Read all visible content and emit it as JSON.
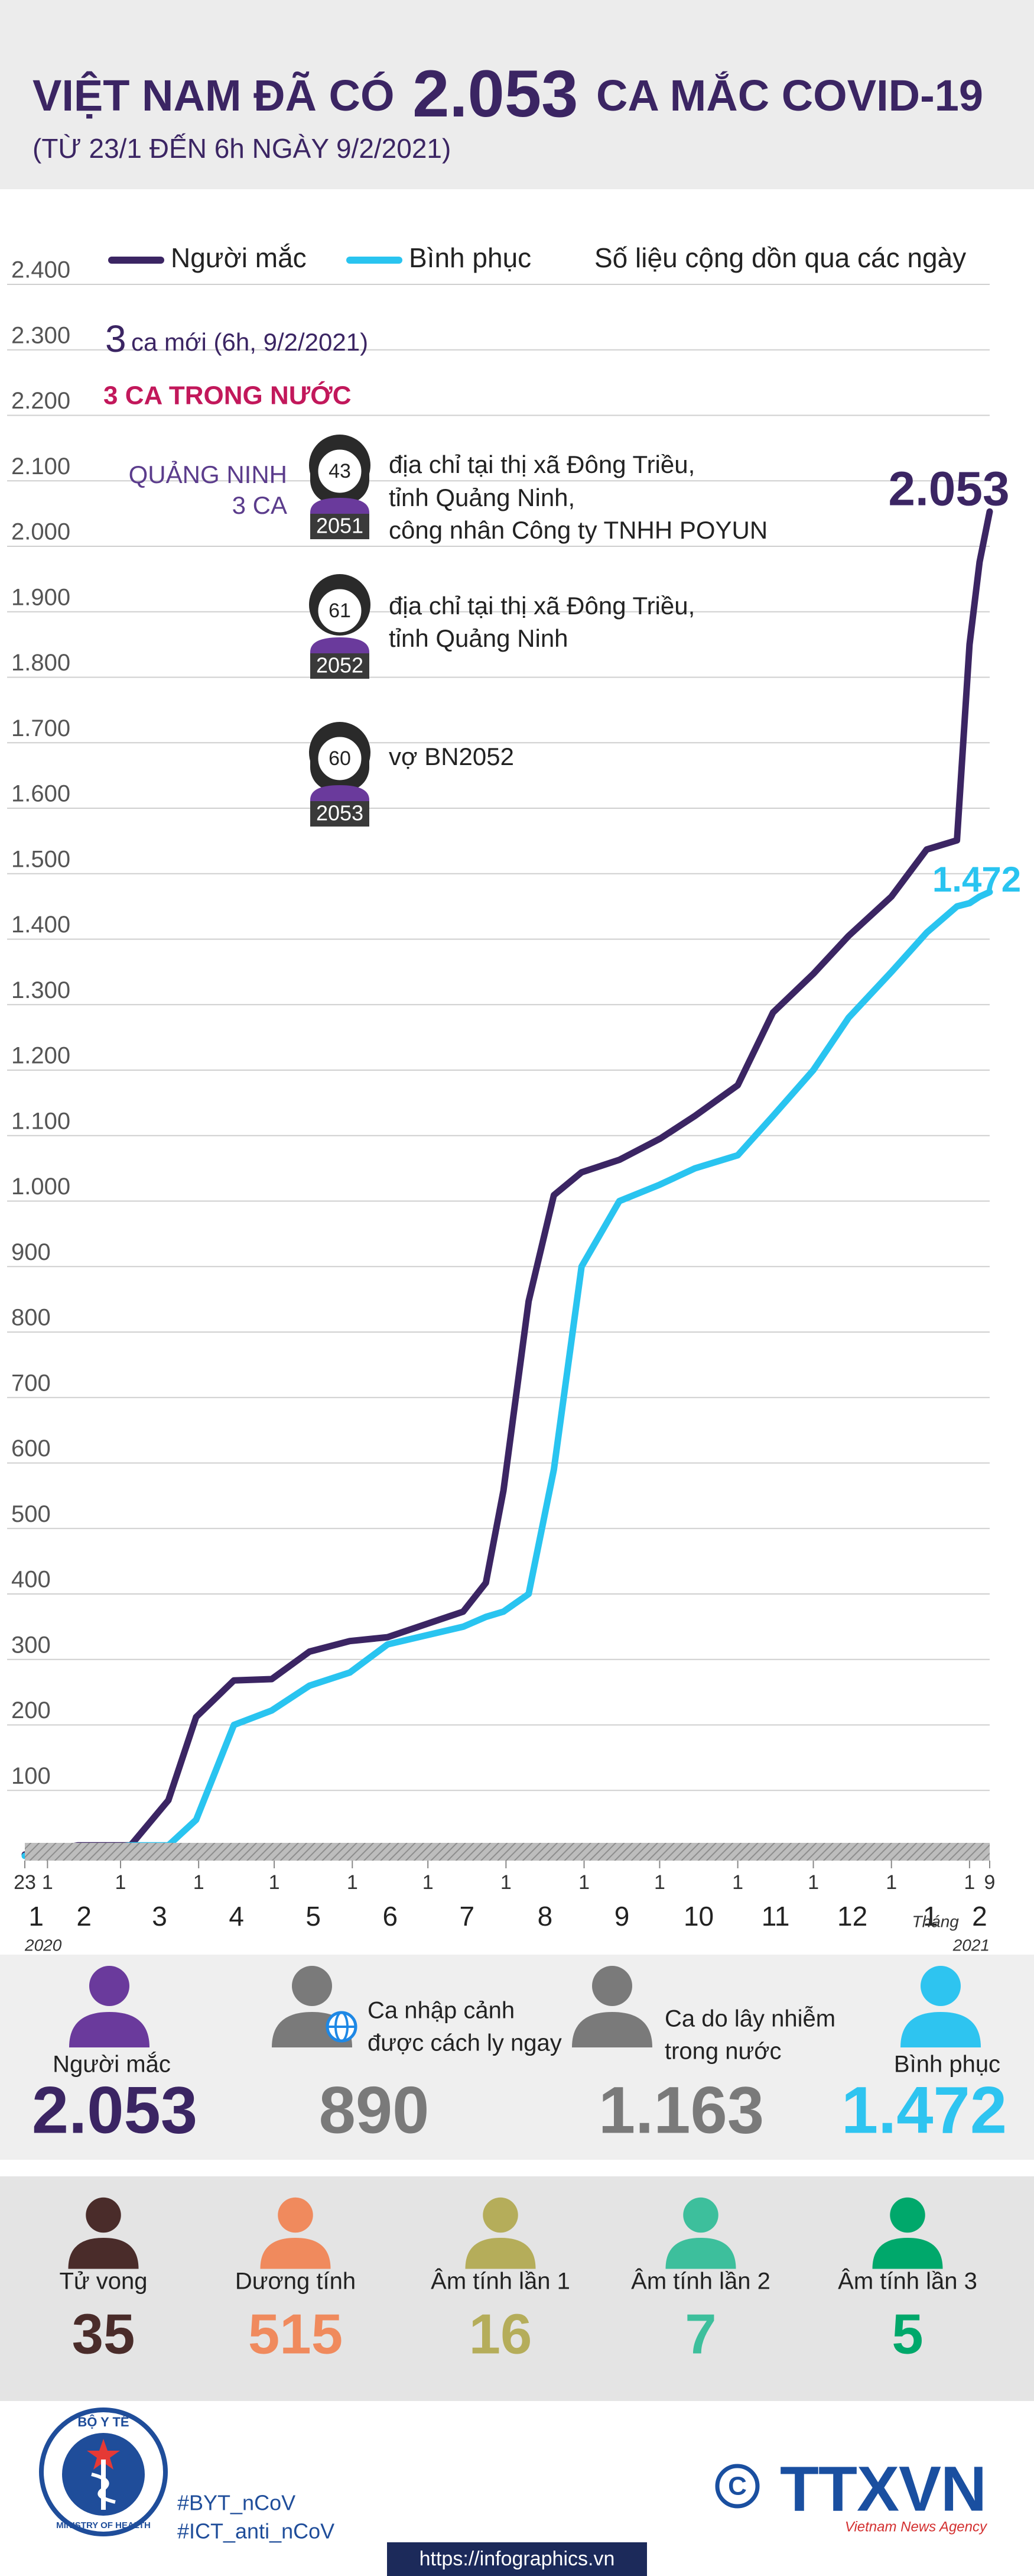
{
  "header": {
    "title_prefix": "VIỆT NAM ĐÃ CÓ",
    "title_number": "2.053",
    "title_suffix": "CA MẮC COVID-19",
    "subtitle": "(TỪ 23/1 ĐẾN 6h NGÀY 9/2/2021)"
  },
  "chart_data": {
    "type": "line",
    "note": "Số liệu cộng dồn qua các ngày",
    "x": [
      "2020-01-23",
      "2020-02-13",
      "2020-03-05",
      "2020-03-20",
      "2020-03-31",
      "2020-04-15",
      "2020-04-30",
      "2020-05-15",
      "2020-05-31",
      "2020-06-15",
      "2020-07-15",
      "2020-07-24",
      "2020-07-31",
      "2020-08-10",
      "2020-08-20",
      "2020-08-31",
      "2020-09-15",
      "2020-10-01",
      "2020-10-15",
      "2020-11-01",
      "2020-11-15",
      "2020-12-01",
      "2020-12-15",
      "2021-01-01",
      "2021-01-15",
      "2021-01-27",
      "2021-02-01",
      "2021-02-05",
      "2021-02-09"
    ],
    "series": [
      {
        "name": "Người mắc",
        "color": "#3b2563",
        "values": [
          2,
          16,
          16,
          85,
          212,
          268,
          270,
          312,
          328,
          334,
          373,
          417,
          558,
          847,
          1009,
          1044,
          1063,
          1095,
          1130,
          1177,
          1288,
          1347,
          1405,
          1465,
          1537,
          1551,
          1850,
          1976,
          2053
        ],
        "value_labels": [
          null,
          null,
          null,
          null,
          null,
          null,
          null,
          null,
          null,
          null,
          null,
          null,
          null,
          null,
          null,
          null,
          null,
          null,
          null,
          null,
          null,
          null,
          null,
          null,
          null,
          null,
          null,
          null,
          "2.053"
        ]
      },
      {
        "name": "Bình phục",
        "color": "#29c4f0",
        "values": [
          0,
          7,
          16,
          16,
          55,
          200,
          222,
          260,
          280,
          323,
          350,
          365,
          373,
          400,
          590,
          900,
          1000,
          1025,
          1050,
          1070,
          1130,
          1200,
          1280,
          1350,
          1410,
          1450,
          1455,
          1465,
          1472
        ],
        "value_labels": [
          null,
          null,
          null,
          null,
          null,
          null,
          null,
          null,
          null,
          null,
          null,
          null,
          null,
          null,
          null,
          null,
          null,
          null,
          null,
          null,
          null,
          null,
          null,
          null,
          null,
          null,
          null,
          null,
          "1.472"
        ]
      }
    ],
    "xlim": [
      "2020-01-23",
      "2021-02-09"
    ],
    "xticks": [
      {
        "value": "2020-01-23",
        "label": "23"
      },
      {
        "value": "2020-02-01",
        "label": "1"
      },
      {
        "value": "2020-03-01",
        "label": "1"
      },
      {
        "value": "2020-04-01",
        "label": "1"
      },
      {
        "value": "2020-05-01",
        "label": "1"
      },
      {
        "value": "2020-06-01",
        "label": "1"
      },
      {
        "value": "2020-07-01",
        "label": "1"
      },
      {
        "value": "2020-08-01",
        "label": "1"
      },
      {
        "value": "2020-09-01",
        "label": "1"
      },
      {
        "value": "2020-10-01",
        "label": "1"
      },
      {
        "value": "2020-11-01",
        "label": "1"
      },
      {
        "value": "2020-12-01",
        "label": "1"
      },
      {
        "value": "2021-01-01",
        "label": "1"
      },
      {
        "value": "2021-02-01",
        "label": "1"
      },
      {
        "value": "2021-02-09",
        "label": "9"
      }
    ],
    "month_labels": [
      "1",
      "2",
      "3",
      "4",
      "5",
      "6",
      "7",
      "8",
      "9",
      "10",
      "11",
      "12",
      "1",
      "2"
    ],
    "month_axis_label": "Tháng",
    "year_labels": [
      "2020",
      "2021"
    ],
    "ylim": [
      0,
      2400
    ],
    "yticks": [
      100,
      200,
      300,
      400,
      500,
      600,
      700,
      800,
      900,
      {
        "value": 1000,
        "label": "1.000"
      },
      {
        "value": 1100,
        "label": "1.100"
      },
      {
        "value": 1200,
        "label": "1.200"
      },
      {
        "value": 1300,
        "label": "1.300"
      },
      {
        "value": 1400,
        "label": "1.400"
      },
      {
        "value": 1500,
        "label": "1.500"
      },
      {
        "value": 1600,
        "label": "1.600"
      },
      {
        "value": 1700,
        "label": "1.700"
      },
      {
        "value": 1800,
        "label": "1.800"
      },
      {
        "value": 1900,
        "label": "1.900"
      },
      {
        "value": 2000,
        "label": "2.000"
      },
      {
        "value": 2100,
        "label": "2.100"
      },
      {
        "value": 2200,
        "label": "2.200"
      },
      {
        "value": 2300,
        "label": "2.300"
      },
      {
        "value": 2400,
        "label": "2.400"
      }
    ],
    "grid": true,
    "annotations": {
      "new_cases_number": "3",
      "new_cases_text": "ca mới (6h, 9/2/2021)",
      "domestic": "3 CA TRONG NƯỚC",
      "province": "QUẢNG NINH",
      "province_count": "3 CA",
      "patients": [
        {
          "age": 43,
          "id": 2051,
          "description": [
            "địa chỉ tại thị xã Đông Triều,",
            "tỉnh Quảng Ninh,",
            "công nhân Công ty TNHH POYUN"
          ]
        },
        {
          "age": 61,
          "id": 2052,
          "description": [
            "địa chỉ tại thị xã Đông Triều,",
            "tỉnh Quảng Ninh"
          ]
        },
        {
          "age": 60,
          "id": 2053,
          "description": [
            "vợ BN2052"
          ]
        }
      ]
    }
  },
  "summary": [
    {
      "label": [
        "Người mắc"
      ],
      "value": "2.053"
    },
    {
      "label": [
        "Ca nhập cảnh",
        "được cách ly ngay"
      ],
      "value": "890"
    },
    {
      "label": [
        "Ca do lây nhiễm",
        "trong nước"
      ],
      "value": "1.163"
    },
    {
      "label": [
        "Bình phục"
      ],
      "value": "1.472"
    }
  ],
  "outcomes": [
    {
      "label": "Tử vong",
      "value": 35
    },
    {
      "label": "Dương tính",
      "value": 515
    },
    {
      "label": "Âm tính lần 1",
      "value": 16
    },
    {
      "label": "Âm tính lần 2",
      "value": 7
    },
    {
      "label": "Âm tính lần 3",
      "value": 5
    }
  ],
  "footer": {
    "ministry": "BỘ Y TẾ",
    "ministry_en": "MINISTRY OF HEALTH",
    "hashtags": [
      "#BYT_nCoV",
      "#ICT_anti_nCoV"
    ],
    "agency": "TTXVN",
    "agency_en": "Vietnam News Agency",
    "url": "https://infographics.vn"
  }
}
